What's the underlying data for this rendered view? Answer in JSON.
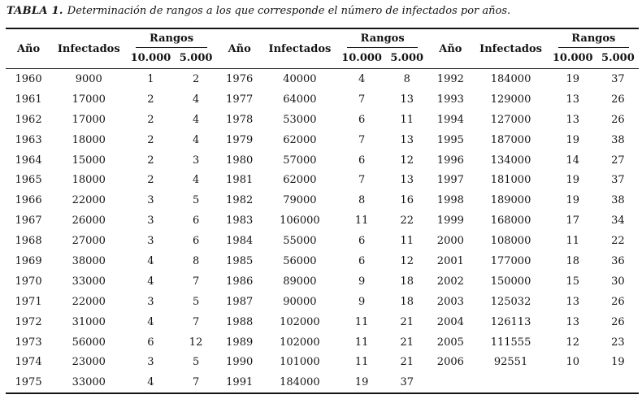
{
  "caption": {
    "label": "TABLA 1.",
    "text": "Determinación de rangos a los que corresponde el número de infectados por años."
  },
  "table": {
    "headers": {
      "year": "Año",
      "infected": "Infectados",
      "ranges": "Rangos",
      "range_10000": "10.000",
      "range_5000": "5.000"
    },
    "groups": [
      {
        "rows": [
          [
            "1960",
            "9000",
            "1",
            "2"
          ],
          [
            "1961",
            "17000",
            "2",
            "4"
          ],
          [
            "1962",
            "17000",
            "2",
            "4"
          ],
          [
            "1963",
            "18000",
            "2",
            "4"
          ],
          [
            "1964",
            "15000",
            "2",
            "3"
          ],
          [
            "1965",
            "18000",
            "2",
            "4"
          ],
          [
            "1966",
            "22000",
            "3",
            "5"
          ],
          [
            "1967",
            "26000",
            "3",
            "6"
          ],
          [
            "1968",
            "27000",
            "3",
            "6"
          ],
          [
            "1969",
            "38000",
            "4",
            "8"
          ],
          [
            "1970",
            "33000",
            "4",
            "7"
          ],
          [
            "1971",
            "22000",
            "3",
            "5"
          ],
          [
            "1972",
            "31000",
            "4",
            "7"
          ],
          [
            "1973",
            "56000",
            "6",
            "12"
          ],
          [
            "1974",
            "23000",
            "3",
            "5"
          ],
          [
            "1975",
            "33000",
            "4",
            "7"
          ]
        ]
      },
      {
        "rows": [
          [
            "1976",
            "40000",
            "4",
            "8"
          ],
          [
            "1977",
            "64000",
            "7",
            "13"
          ],
          [
            "1978",
            "53000",
            "6",
            "11"
          ],
          [
            "1979",
            "62000",
            "7",
            "13"
          ],
          [
            "1980",
            "57000",
            "6",
            "12"
          ],
          [
            "1981",
            "62000",
            "7",
            "13"
          ],
          [
            "1982",
            "79000",
            "8",
            "16"
          ],
          [
            "1983",
            "106000",
            "11",
            "22"
          ],
          [
            "1984",
            "55000",
            "6",
            "11"
          ],
          [
            "1985",
            "56000",
            "6",
            "12"
          ],
          [
            "1986",
            "89000",
            "9",
            "18"
          ],
          [
            "1987",
            "90000",
            "9",
            "18"
          ],
          [
            "1988",
            "102000",
            "11",
            "21"
          ],
          [
            "1989",
            "102000",
            "11",
            "21"
          ],
          [
            "1990",
            "101000",
            "11",
            "21"
          ],
          [
            "1991",
            "184000",
            "19",
            "37"
          ]
        ]
      },
      {
        "rows": [
          [
            "1992",
            "184000",
            "19",
            "37"
          ],
          [
            "1993",
            "129000",
            "13",
            "26"
          ],
          [
            "1994",
            "127000",
            "13",
            "26"
          ],
          [
            "1995",
            "187000",
            "19",
            "38"
          ],
          [
            "1996",
            "134000",
            "14",
            "27"
          ],
          [
            "1997",
            "181000",
            "19",
            "37"
          ],
          [
            "1998",
            "189000",
            "19",
            "38"
          ],
          [
            "1999",
            "168000",
            "17",
            "34"
          ],
          [
            "2000",
            "108000",
            "11",
            "22"
          ],
          [
            "2001",
            "177000",
            "18",
            "36"
          ],
          [
            "2002",
            "150000",
            "15",
            "30"
          ],
          [
            "2003",
            "125032",
            "13",
            "26"
          ],
          [
            "2004",
            "126113",
            "13",
            "26"
          ],
          [
            "2005",
            "111555",
            "12",
            "23"
          ],
          [
            "2006",
            "92551",
            "10",
            "19"
          ]
        ]
      }
    ]
  },
  "colors": {
    "background": "#ffffff",
    "text": "#141414",
    "rule": "#141414"
  }
}
